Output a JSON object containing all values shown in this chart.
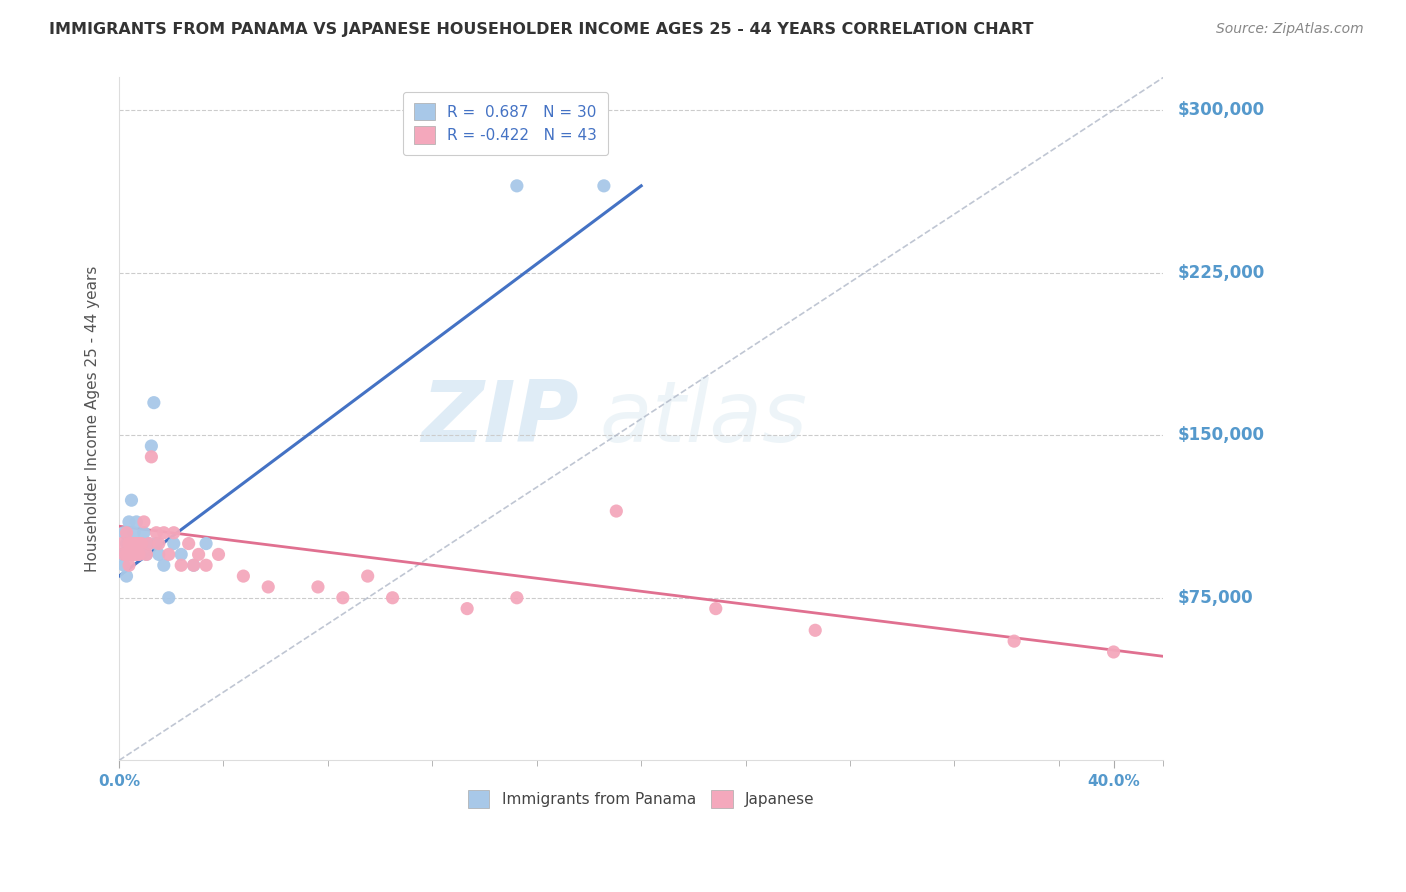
{
  "title": "IMMIGRANTS FROM PANAMA VS JAPANESE HOUSEHOLDER INCOME AGES 25 - 44 YEARS CORRELATION CHART",
  "source": "Source: ZipAtlas.com",
  "ylabel": "Householder Income Ages 25 - 44 years",
  "ytick_labels": [
    "$75,000",
    "$150,000",
    "$225,000",
    "$300,000"
  ],
  "ytick_values": [
    75000,
    150000,
    225000,
    300000
  ],
  "ymin": 0,
  "ymax": 315000,
  "xmin": 0.0,
  "xmax": 0.42,
  "panama_color": "#a8c8e8",
  "japanese_color": "#f4a8bc",
  "panama_line_color": "#4472c4",
  "japanese_line_color": "#e07090",
  "diagonal_color": "#b0b8c8",
  "watermark_zip": "ZIP",
  "watermark_atlas": "atlas",
  "panama_points_x": [
    0.001,
    0.002,
    0.002,
    0.003,
    0.003,
    0.004,
    0.004,
    0.005,
    0.005,
    0.006,
    0.006,
    0.007,
    0.007,
    0.008,
    0.009,
    0.01,
    0.011,
    0.012,
    0.013,
    0.014,
    0.015,
    0.016,
    0.018,
    0.02,
    0.022,
    0.025,
    0.03,
    0.035,
    0.16,
    0.195
  ],
  "panama_points_y": [
    95000,
    105000,
    90000,
    100000,
    85000,
    110000,
    95000,
    100000,
    120000,
    105000,
    95000,
    100000,
    110000,
    95000,
    100000,
    105000,
    95000,
    100000,
    145000,
    165000,
    100000,
    95000,
    90000,
    75000,
    100000,
    95000,
    90000,
    100000,
    265000,
    265000
  ],
  "japanese_points_x": [
    0.001,
    0.002,
    0.003,
    0.003,
    0.004,
    0.004,
    0.005,
    0.005,
    0.006,
    0.006,
    0.007,
    0.007,
    0.008,
    0.008,
    0.009,
    0.01,
    0.011,
    0.012,
    0.013,
    0.015,
    0.016,
    0.018,
    0.02,
    0.022,
    0.025,
    0.028,
    0.03,
    0.032,
    0.035,
    0.04,
    0.05,
    0.06,
    0.08,
    0.09,
    0.1,
    0.11,
    0.14,
    0.16,
    0.2,
    0.24,
    0.28,
    0.36,
    0.4
  ],
  "japanese_points_y": [
    100000,
    95000,
    105000,
    95000,
    100000,
    90000,
    100000,
    95000,
    100000,
    95000,
    100000,
    95000,
    100000,
    95000,
    100000,
    110000,
    95000,
    100000,
    140000,
    105000,
    100000,
    105000,
    95000,
    105000,
    90000,
    100000,
    90000,
    95000,
    90000,
    95000,
    85000,
    80000,
    80000,
    75000,
    85000,
    75000,
    70000,
    75000,
    115000,
    70000,
    60000,
    55000,
    50000
  ]
}
